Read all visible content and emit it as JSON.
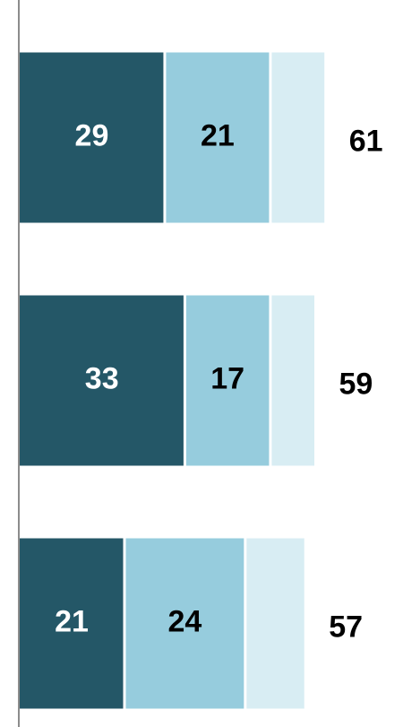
{
  "chart_data": {
    "type": "stacked-barh",
    "series": [
      {
        "color": "#245767",
        "label_color": "#ffffff",
        "values": [
          29,
          33,
          21
        ]
      },
      {
        "color": "#96ccdd",
        "label_color": "#000000",
        "values": [
          21,
          17,
          24
        ]
      },
      {
        "color": "#d8edf3",
        "values": [
          11,
          9,
          12
        ]
      }
    ],
    "totals": [
      61,
      59,
      57
    ],
    "xlim": [
      0,
      76
    ]
  }
}
